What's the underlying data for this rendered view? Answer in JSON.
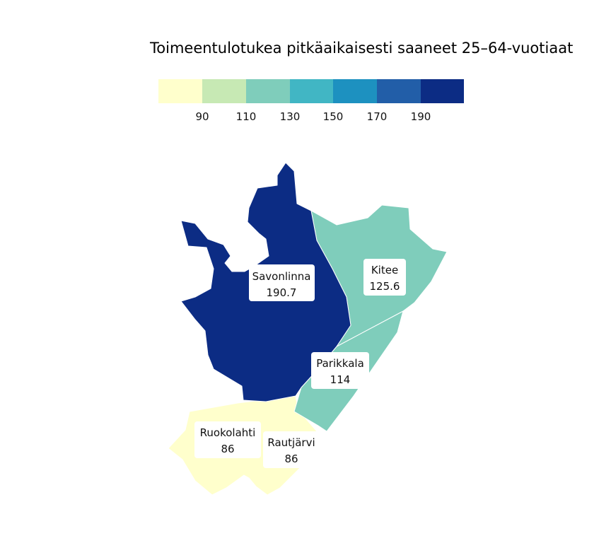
{
  "title": "Toimeentulotukea pitkäaikaisesti saaneet 25–64-vuotiaat",
  "legend": {
    "colors": [
      "#ffffcc",
      "#c7e9b4",
      "#7fcdbb",
      "#41b6c4",
      "#1d91c0",
      "#225ea8",
      "#0c2c84"
    ],
    "ticks": [
      "90",
      "110",
      "130",
      "150",
      "170",
      "190"
    ]
  },
  "regions": [
    {
      "name": "Savonlinna",
      "value": "190.7",
      "color": "#0c2c84"
    },
    {
      "name": "Kitee",
      "value": "125.6",
      "color": "#7fcdbb"
    },
    {
      "name": "Parikkala",
      "value": "114",
      "color": "#7fcdbb"
    },
    {
      "name": "Ruokolahti",
      "value": "86",
      "color": "#ffffcc"
    },
    {
      "name": "Rautjärvi",
      "value": "86",
      "color": "#ffffcc"
    }
  ]
}
